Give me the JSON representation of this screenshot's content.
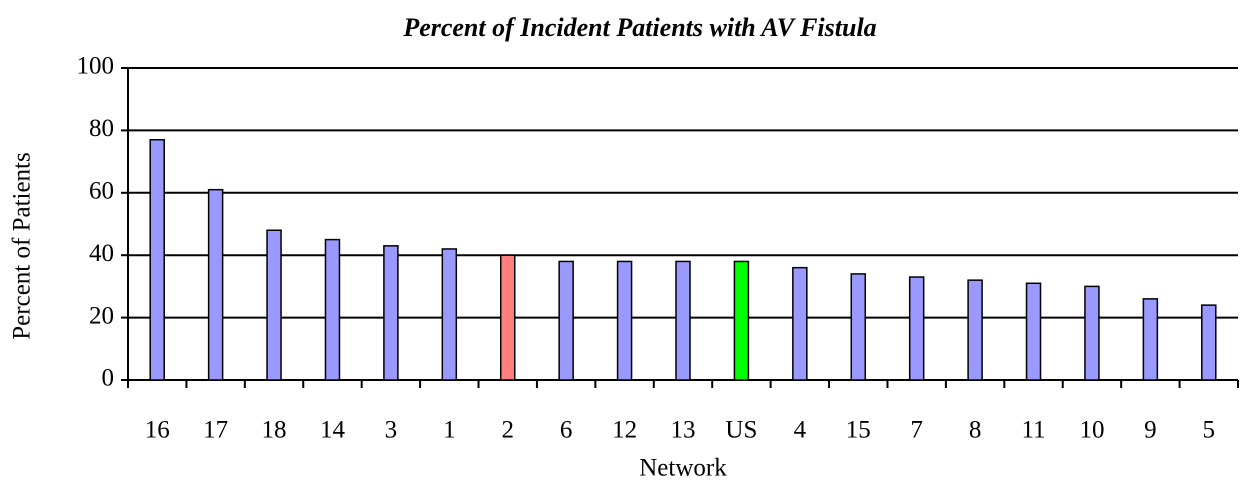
{
  "chart_data": {
    "type": "bar",
    "title": "Percent of Incident Patients with AV Fistula",
    "x_label": "Network",
    "y_label": "Percent of Patients",
    "categories": [
      "16",
      "17",
      "18",
      "14",
      "3",
      "1",
      "2",
      "6",
      "12",
      "13",
      "US",
      "4",
      "15",
      "7",
      "8",
      "11",
      "10",
      "9",
      "5"
    ],
    "values": [
      77,
      61,
      48,
      45,
      43,
      42,
      40,
      38,
      38,
      38,
      38,
      36,
      34,
      33,
      32,
      31,
      30,
      26,
      24
    ],
    "color": "#9999ff",
    "colors": [
      "#9999ff",
      "#9999ff",
      "#9999ff",
      "#9999ff",
      "#9999ff",
      "#9999ff",
      "#ff7f7f",
      "#9999ff",
      "#9999ff",
      "#9999ff",
      "#00ff00",
      "#9999ff",
      "#9999ff",
      "#9999ff",
      "#9999ff",
      "#9999ff",
      "#9999ff",
      "#9999ff",
      "#9999ff"
    ],
    "ylim": [
      0,
      100
    ],
    "yticks": [
      0,
      20,
      40,
      60,
      80,
      100
    ],
    "grid": true
  }
}
